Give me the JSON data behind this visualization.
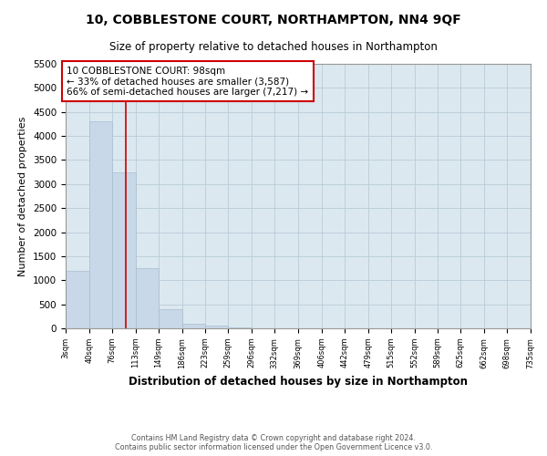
{
  "title": "10, COBBLESTONE COURT, NORTHAMPTON, NN4 9QF",
  "subtitle": "Size of property relative to detached houses in Northampton",
  "xlabel": "Distribution of detached houses by size in Northampton",
  "ylabel": "Number of detached properties",
  "bar_color": "#c8d8e8",
  "bar_edgecolor": "#a8bece",
  "grid_color": "#b8ccd8",
  "background_color": "#dce8f0",
  "property_line_x": 98,
  "property_line_color": "#cc0000",
  "annotation_text": "10 COBBLESTONE COURT: 98sqm\n← 33% of detached houses are smaller (3,587)\n66% of semi-detached houses are larger (7,217) →",
  "annotation_box_edgecolor": "#cc0000",
  "bins": [
    3,
    40,
    76,
    113,
    149,
    186,
    223,
    259,
    296,
    332,
    369,
    406,
    442,
    479,
    515,
    552,
    589,
    625,
    662,
    698,
    735
  ],
  "bar_heights": [
    1200,
    4300,
    3250,
    1250,
    400,
    100,
    55,
    20,
    8,
    4,
    1,
    0,
    0,
    0,
    0,
    0,
    0,
    0,
    0,
    0
  ],
  "ylim": [
    0,
    5500
  ],
  "yticks": [
    0,
    500,
    1000,
    1500,
    2000,
    2500,
    3000,
    3500,
    4000,
    4500,
    5000,
    5500
  ],
  "footer_text": "Contains HM Land Registry data © Crown copyright and database right 2024.\nContains public sector information licensed under the Open Government Licence v3.0.",
  "xlim": [
    3,
    735
  ]
}
